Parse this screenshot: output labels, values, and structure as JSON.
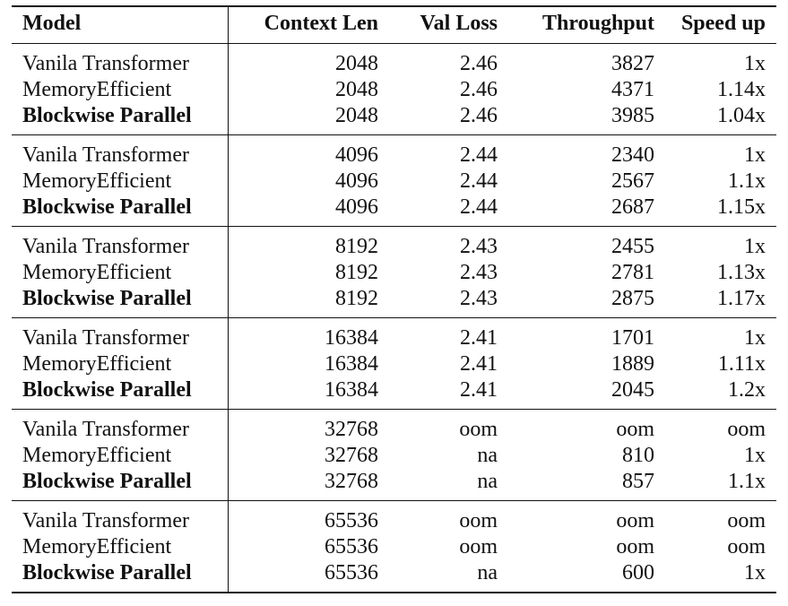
{
  "table": {
    "headers": [
      "Model",
      "Context Len",
      "Val Loss",
      "Throughput",
      "Speed up"
    ],
    "groups": [
      {
        "rows": [
          {
            "model": "Vanila Transformer",
            "context_len": "2048",
            "val_loss": "2.46",
            "throughput": "3827",
            "speedup": "1x"
          },
          {
            "model": "MemoryEfficient",
            "context_len": "2048",
            "val_loss": "2.46",
            "throughput": "4371",
            "speedup": "1.14x"
          },
          {
            "model": "Blockwise Parallel",
            "context_len": "2048",
            "val_loss": "2.46",
            "throughput": "3985",
            "speedup": "1.04x"
          }
        ]
      },
      {
        "rows": [
          {
            "model": "Vanila Transformer",
            "context_len": "4096",
            "val_loss": "2.44",
            "throughput": "2340",
            "speedup": "1x"
          },
          {
            "model": "MemoryEfficient",
            "context_len": "4096",
            "val_loss": "2.44",
            "throughput": "2567",
            "speedup": "1.1x"
          },
          {
            "model": "Blockwise Parallel",
            "context_len": "4096",
            "val_loss": "2.44",
            "throughput": "2687",
            "speedup": "1.15x"
          }
        ]
      },
      {
        "rows": [
          {
            "model": "Vanila Transformer",
            "context_len": "8192",
            "val_loss": "2.43",
            "throughput": "2455",
            "speedup": "1x"
          },
          {
            "model": "MemoryEfficient",
            "context_len": "8192",
            "val_loss": "2.43",
            "throughput": "2781",
            "speedup": "1.13x"
          },
          {
            "model": "Blockwise Parallel",
            "context_len": "8192",
            "val_loss": "2.43",
            "throughput": "2875",
            "speedup": "1.17x"
          }
        ]
      },
      {
        "rows": [
          {
            "model": "Vanila Transformer",
            "context_len": "16384",
            "val_loss": "2.41",
            "throughput": "1701",
            "speedup": "1x"
          },
          {
            "model": "MemoryEfficient",
            "context_len": "16384",
            "val_loss": "2.41",
            "throughput": "1889",
            "speedup": "1.11x"
          },
          {
            "model": "Blockwise Parallel",
            "context_len": "16384",
            "val_loss": "2.41",
            "throughput": "2045",
            "speedup": "1.2x"
          }
        ]
      },
      {
        "rows": [
          {
            "model": "Vanila Transformer",
            "context_len": "32768",
            "val_loss": "oom",
            "throughput": "oom",
            "speedup": "oom"
          },
          {
            "model": "MemoryEfficient",
            "context_len": "32768",
            "val_loss": "na",
            "throughput": "810",
            "speedup": "1x"
          },
          {
            "model": "Blockwise Parallel",
            "context_len": "32768",
            "val_loss": "na",
            "throughput": "857",
            "speedup": "1.1x"
          }
        ]
      },
      {
        "rows": [
          {
            "model": "Vanila Transformer",
            "context_len": "65536",
            "val_loss": "oom",
            "throughput": "oom",
            "speedup": "oom"
          },
          {
            "model": "MemoryEfficient",
            "context_len": "65536",
            "val_loss": "oom",
            "throughput": "oom",
            "speedup": "oom"
          },
          {
            "model": "Blockwise Parallel",
            "context_len": "65536",
            "val_loss": "na",
            "throughput": "600",
            "speedup": "1x"
          }
        ]
      }
    ]
  }
}
